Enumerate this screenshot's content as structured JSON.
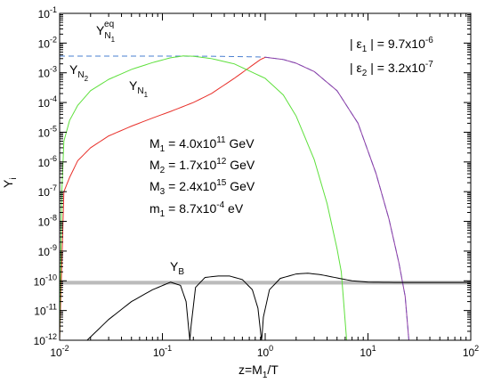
{
  "chart_data": {
    "type": "line",
    "xscale": "log",
    "yscale": "log",
    "xlim": [
      0.01,
      100
    ],
    "ylim": [
      1e-12,
      0.1
    ],
    "grid": false,
    "xlabel": "z=M₁/T",
    "ylabel": "Yᵢ",
    "x_ticks": [
      {
        "value": 0.01,
        "base": "10",
        "exp": "-2"
      },
      {
        "value": 0.1,
        "base": "10",
        "exp": "-1"
      },
      {
        "value": 1,
        "base": "10",
        "exp": "0"
      },
      {
        "value": 10,
        "base": "10",
        "exp": "1"
      },
      {
        "value": 100,
        "base": "10",
        "exp": "2"
      }
    ],
    "y_ticks": [
      {
        "value": 1e-12,
        "base": "10",
        "exp": "-12"
      },
      {
        "value": 1e-11,
        "base": "10",
        "exp": "-11"
      },
      {
        "value": 1e-10,
        "base": "10",
        "exp": "-10"
      },
      {
        "value": 1e-09,
        "base": "10",
        "exp": "-9"
      },
      {
        "value": 1e-08,
        "base": "10",
        "exp": "-8"
      },
      {
        "value": 1e-07,
        "base": "10",
        "exp": "-7"
      },
      {
        "value": 1e-06,
        "base": "10",
        "exp": "-6"
      },
      {
        "value": 1e-05,
        "base": "10",
        "exp": "-5"
      },
      {
        "value": 0.0001,
        "base": "10",
        "exp": "-4"
      },
      {
        "value": 0.001,
        "base": "10",
        "exp": "-3"
      },
      {
        "value": 0.01,
        "base": "10",
        "exp": "-2"
      },
      {
        "value": 0.1,
        "base": "10",
        "exp": "-1"
      }
    ],
    "series": [
      {
        "name": "Y_N1^eq",
        "color": "#4a7fd0",
        "style": "dashed",
        "x": [
          0.01,
          0.1,
          0.3,
          0.6,
          0.9,
          1.0,
          1.5,
          2,
          3,
          5,
          8,
          12,
          16,
          20,
          23,
          25
        ],
        "y": [
          0.00365,
          0.00365,
          0.0036,
          0.0035,
          0.0034,
          0.00335,
          0.0028,
          0.0021,
          0.0011,
          0.00025,
          2e-05,
          4e-07,
          1.2e-08,
          4e-10,
          3e-11,
          1e-12
        ]
      },
      {
        "name": "Y_N1",
        "color": "#e8302a",
        "x": [
          0.01,
          0.011,
          0.0125,
          0.015,
          0.02,
          0.03,
          0.05,
          0.08,
          0.12,
          0.2,
          0.3,
          0.5,
          0.7,
          0.9,
          1.0
        ],
        "y": [
          1e-12,
          1e-07,
          3e-07,
          1.1e-06,
          3e-06,
          7.5e-06,
          1.6e-05,
          3e-05,
          5e-05,
          0.0001,
          0.0002,
          0.00065,
          0.0015,
          0.0028,
          0.0033
        ]
      },
      {
        "name": "Y_N2",
        "color": "#5ee03c",
        "x": [
          0.01,
          0.0105,
          0.011,
          0.0125,
          0.015,
          0.02,
          0.03,
          0.05,
          0.08,
          0.12,
          0.16,
          0.2,
          0.3,
          0.5,
          1.0,
          1.5,
          2,
          3,
          4,
          5,
          5.5,
          6.2
        ],
        "y": [
          1e-12,
          1e-07,
          5e-06,
          2.5e-05,
          8e-05,
          0.00025,
          0.0006,
          0.0013,
          0.0022,
          0.0032,
          0.0037,
          0.0036,
          0.003,
          0.002,
          0.00065,
          0.00018,
          3.5e-05,
          1.2e-06,
          4e-08,
          1.2e-09,
          2e-10,
          1e-12
        ]
      },
      {
        "name": "Y_N1 (z>1)",
        "color": "#8e3fa8",
        "x": [
          1.0,
          1.5,
          2,
          3,
          5,
          8,
          12,
          16,
          20,
          23,
          25
        ],
        "y": [
          0.00335,
          0.0028,
          0.0021,
          0.0011,
          0.00025,
          2e-05,
          4e-07,
          1.2e-08,
          4e-10,
          3e-11,
          1e-12
        ]
      },
      {
        "name": "Y_B",
        "color": "#000000",
        "x": [
          0.0185,
          0.03,
          0.05,
          0.08,
          0.12,
          0.15,
          0.17,
          0.18,
          0.185,
          0.19,
          0.21,
          0.26,
          0.35,
          0.45,
          0.6,
          0.75,
          0.85,
          0.9,
          0.92,
          0.93,
          0.96,
          1.1,
          1.4,
          2,
          2.6,
          3.5,
          5,
          7,
          10,
          20,
          50,
          100
        ],
        "y": [
          1e-12,
          5e-12,
          2e-11,
          5e-11,
          9e-11,
          7e-11,
          2e-11,
          2.5e-12,
          1e-12,
          3e-12,
          6e-11,
          1.3e-10,
          1.45e-10,
          1.45e-10,
          1.1e-10,
          5e-11,
          1.2e-11,
          2e-12,
          1e-12,
          1.3e-12,
          6e-12,
          5e-11,
          1.2e-10,
          1.7e-10,
          1.8e-10,
          1.6e-10,
          1.25e-10,
          1e-10,
          9e-11,
          8.8e-11,
          8.8e-11,
          8.8e-11
        ]
      }
    ],
    "observed_band": {
      "y_low": 7.5e-11,
      "y_high": 1e-10,
      "color": "#bbbbbb"
    },
    "labels": {
      "yeq": {
        "main": "Y",
        "sub": "N",
        "subsub": "1",
        "sup": "eq"
      },
      "yn2": {
        "main": "Y",
        "sub": "N",
        "subsub": "2"
      },
      "yn1": {
        "main": "Y",
        "sub": "N",
        "subsub": "1"
      },
      "yb": {
        "main": "Y",
        "sub": "B"
      }
    },
    "annotations": {
      "eps1": {
        "left": "| ε",
        "sub": "1",
        "mid": " | = 9.7x10",
        "sup": "-6"
      },
      "eps2": {
        "left": "| ε",
        "sub": "2",
        "mid": " | = 3.2x10",
        "sup": "-7"
      },
      "m1": {
        "left": "M",
        "sub": "1",
        "mid": " = 4.0x10",
        "sup": "11",
        "unit": " GeV"
      },
      "m2": {
        "left": "M",
        "sub": "2",
        "mid": " = 1.7x10",
        "sup": "12",
        "unit": " GeV"
      },
      "m3": {
        "left": "M",
        "sub": "3",
        "mid": " = 2.4x10",
        "sup": "15",
        "unit": " GeV"
      },
      "mlight": {
        "left": "m",
        "sub": "1",
        "mid": " = 8.7x10",
        "sup": "-4",
        "unit": " eV"
      }
    },
    "axis_label_parts": {
      "x": {
        "left": "z=M",
        "sub": "1",
        "right": "/T"
      },
      "y": {
        "main": "Y",
        "sub": "i"
      }
    }
  }
}
